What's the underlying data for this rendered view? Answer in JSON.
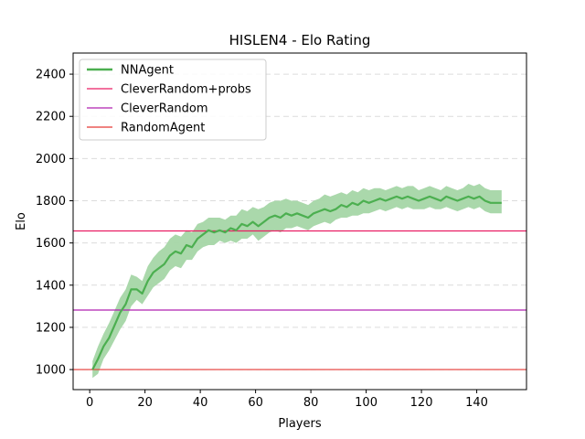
{
  "chart_data": {
    "type": "line",
    "title": "HISLEN4 - Elo Rating",
    "xlabel": "Players",
    "ylabel": "Elo",
    "xlim": [
      -6,
      158
    ],
    "ylim": [
      905,
      2500
    ],
    "xticks": [
      0,
      20,
      40,
      60,
      80,
      100,
      120,
      140
    ],
    "yticks": [
      1000,
      1200,
      1400,
      1600,
      1800,
      2000,
      2200,
      2400
    ],
    "grid": "horizontal dashed",
    "legend_position": "top-left",
    "series": [
      {
        "name": "NNAgent",
        "color": "#4caf50",
        "band_color": "#a5d6a7",
        "x": [
          1,
          3,
          5,
          7,
          9,
          11,
          13,
          15,
          17,
          19,
          21,
          23,
          25,
          27,
          29,
          31,
          33,
          35,
          37,
          39,
          41,
          43,
          45,
          47,
          49,
          51,
          53,
          55,
          57,
          59,
          61,
          63,
          65,
          67,
          69,
          71,
          73,
          75,
          77,
          79,
          81,
          83,
          85,
          87,
          89,
          91,
          93,
          95,
          97,
          99,
          101,
          103,
          105,
          107,
          109,
          111,
          113,
          115,
          117,
          119,
          121,
          123,
          125,
          127,
          129,
          131,
          133,
          135,
          137,
          139,
          141,
          143,
          145,
          147,
          149
        ],
        "y": [
          1000,
          1050,
          1110,
          1150,
          1210,
          1270,
          1310,
          1380,
          1380,
          1360,
          1420,
          1460,
          1480,
          1500,
          1540,
          1560,
          1550,
          1590,
          1580,
          1620,
          1640,
          1660,
          1650,
          1660,
          1650,
          1670,
          1660,
          1690,
          1680,
          1700,
          1680,
          1700,
          1720,
          1730,
          1720,
          1740,
          1730,
          1740,
          1730,
          1720,
          1740,
          1750,
          1760,
          1750,
          1760,
          1780,
          1770,
          1790,
          1780,
          1800,
          1790,
          1800,
          1810,
          1800,
          1810,
          1820,
          1810,
          1820,
          1810,
          1800,
          1810,
          1820,
          1810,
          1800,
          1820,
          1810,
          1800,
          1810,
          1820,
          1810,
          1820,
          1800,
          1790,
          1790,
          1790
        ],
        "lower": [
          960,
          980,
          1050,
          1090,
          1140,
          1190,
          1230,
          1300,
          1330,
          1310,
          1350,
          1390,
          1410,
          1430,
          1470,
          1490,
          1480,
          1520,
          1520,
          1560,
          1580,
          1590,
          1590,
          1610,
          1600,
          1610,
          1600,
          1620,
          1620,
          1640,
          1610,
          1630,
          1650,
          1660,
          1650,
          1670,
          1670,
          1680,
          1670,
          1660,
          1680,
          1690,
          1700,
          1690,
          1710,
          1720,
          1720,
          1730,
          1730,
          1740,
          1740,
          1750,
          1760,
          1750,
          1760,
          1770,
          1760,
          1770,
          1760,
          1760,
          1760,
          1770,
          1760,
          1760,
          1770,
          1760,
          1750,
          1760,
          1770,
          1760,
          1770,
          1750,
          1740,
          1740,
          1740
        ],
        "upper": [
          1040,
          1110,
          1170,
          1220,
          1280,
          1340,
          1380,
          1450,
          1440,
          1420,
          1490,
          1530,
          1560,
          1580,
          1620,
          1640,
          1630,
          1660,
          1650,
          1690,
          1700,
          1720,
          1720,
          1720,
          1710,
          1730,
          1730,
          1760,
          1750,
          1770,
          1760,
          1770,
          1790,
          1800,
          1800,
          1810,
          1800,
          1800,
          1790,
          1780,
          1800,
          1810,
          1830,
          1820,
          1830,
          1840,
          1830,
          1850,
          1840,
          1860,
          1850,
          1860,
          1860,
          1850,
          1860,
          1870,
          1860,
          1870,
          1870,
          1850,
          1860,
          1870,
          1860,
          1850,
          1870,
          1860,
          1850,
          1860,
          1880,
          1870,
          1880,
          1860,
          1850,
          1850,
          1850
        ]
      },
      {
        "name": "CleverRandom+probs",
        "color": "#e91e63",
        "value": 1657
      },
      {
        "name": "CleverRandom",
        "color": "#b020b0",
        "value": 1282
      },
      {
        "name": "RandomAgent",
        "color": "#e53935",
        "value": 1000
      }
    ]
  }
}
